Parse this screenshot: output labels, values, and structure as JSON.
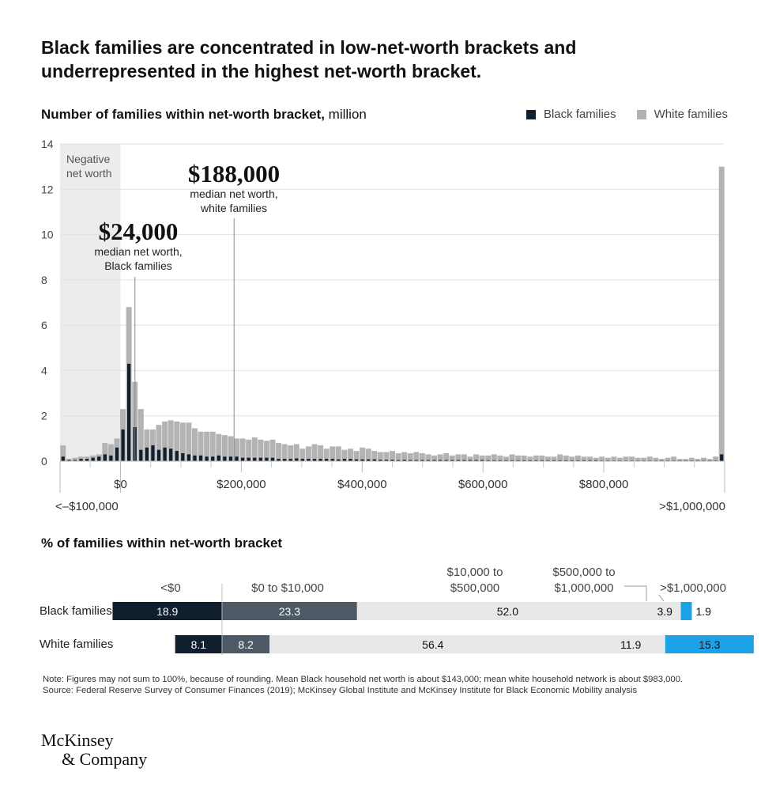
{
  "title": "Black families are concentrated in low-net-worth brackets and underrepresented in the highest net-worth bracket.",
  "histogram": {
    "heading_bold": "Number of families within net-worth bracket,",
    "heading_unit": "million",
    "legend": [
      {
        "label": "Black families",
        "color": "#0f1f2e"
      },
      {
        "label": "White families",
        "color": "#b3b3b3"
      }
    ],
    "negative_label": [
      "Negative",
      "net worth"
    ],
    "annotations": [
      {
        "value": "$24,000",
        "text": [
          "median net worth,",
          "Black families"
        ],
        "x_value": 24000
      },
      {
        "value": "$188,000",
        "text": [
          "median net worth,",
          "white families"
        ],
        "x_value": 188000
      }
    ]
  },
  "chart_data": [
    {
      "type": "bar",
      "title": "Number of families within net-worth bracket, million",
      "ylim": [
        0,
        14
      ],
      "y_ticks": [
        "0",
        "2",
        "4",
        "6",
        "8",
        "10",
        "12",
        "14"
      ],
      "x_tick_labels": [
        {
          "label": "<–$100,000",
          "x": -100000
        },
        {
          "label": "$0",
          "x": 0
        },
        {
          "label": "$200,000",
          "x": 200000
        },
        {
          "label": "$400,000",
          "x": 400000
        },
        {
          "label": "$600,000",
          "x": 600000
        },
        {
          "label": "$800,000",
          "x": 800000
        },
        {
          "label": ">$1,000,000",
          "x": 1000000
        }
      ],
      "bin_width": 10000,
      "series": [
        {
          "name": "White families",
          "values": [
            0.7,
            0.1,
            0.15,
            0.2,
            0.2,
            0.25,
            0.3,
            0.8,
            0.75,
            1.0,
            2.3,
            6.8,
            3.5,
            2.3,
            1.4,
            1.4,
            1.6,
            1.75,
            1.8,
            1.75,
            1.7,
            1.7,
            1.45,
            1.3,
            1.3,
            1.3,
            1.2,
            1.15,
            1.1,
            1.0,
            1.0,
            0.95,
            1.05,
            0.95,
            0.9,
            0.95,
            0.8,
            0.75,
            0.7,
            0.75,
            0.55,
            0.65,
            0.75,
            0.7,
            0.55,
            0.65,
            0.65,
            0.5,
            0.55,
            0.45,
            0.6,
            0.55,
            0.45,
            0.4,
            0.4,
            0.45,
            0.35,
            0.4,
            0.35,
            0.4,
            0.35,
            0.3,
            0.25,
            0.3,
            0.35,
            0.25,
            0.3,
            0.3,
            0.2,
            0.3,
            0.25,
            0.25,
            0.3,
            0.25,
            0.2,
            0.3,
            0.25,
            0.25,
            0.2,
            0.25,
            0.25,
            0.2,
            0.2,
            0.3,
            0.25,
            0.2,
            0.25,
            0.2,
            0.2,
            0.15,
            0.2,
            0.15,
            0.2,
            0.15,
            0.2,
            0.2,
            0.15,
            0.15,
            0.2,
            0.15,
            0.1,
            0.15,
            0.2,
            0.1,
            0.1,
            0.15,
            0.1,
            0.15,
            0.1,
            0.2,
            13.0
          ],
          "color": "#b3b3b3"
        },
        {
          "name": "Black families",
          "values": [
            0.2,
            0.05,
            0.05,
            0.1,
            0.1,
            0.15,
            0.2,
            0.3,
            0.25,
            0.6,
            1.4,
            4.3,
            1.5,
            0.5,
            0.6,
            0.7,
            0.5,
            0.6,
            0.55,
            0.45,
            0.35,
            0.3,
            0.25,
            0.25,
            0.2,
            0.2,
            0.25,
            0.2,
            0.2,
            0.2,
            0.15,
            0.15,
            0.15,
            0.15,
            0.15,
            0.15,
            0.1,
            0.1,
            0.1,
            0.12,
            0.1,
            0.1,
            0.1,
            0.1,
            0.1,
            0.1,
            0.08,
            0.1,
            0.1,
            0.08,
            0.08,
            0.08,
            0.08,
            0.06,
            0.06,
            0.06,
            0.05,
            0.06,
            0.05,
            0.05,
            0.05,
            0.05,
            0.05,
            0.05,
            0.05,
            0.05,
            0.05,
            0.05,
            0.05,
            0.05,
            0.05,
            0.04,
            0.04,
            0.04,
            0.04,
            0.04,
            0.04,
            0.04,
            0.04,
            0.04,
            0.04,
            0.04,
            0.04,
            0.04,
            0.04,
            0.04,
            0.04,
            0.04,
            0.04,
            0.04,
            0.03,
            0.03,
            0.03,
            0.03,
            0.03,
            0.03,
            0.03,
            0.03,
            0.03,
            0.03,
            0.03,
            0.03,
            0.03,
            0.03,
            0.03,
            0.03,
            0.03,
            0.03,
            0.03,
            0.03,
            0.3
          ],
          "color": "#0f1f2e"
        }
      ]
    },
    {
      "type": "bar",
      "orientation": "horizontal-stacked",
      "title": "% of families within net-worth bracket",
      "categories": [
        "<$0",
        "$0 to $10,000",
        "$10,000 to $500,000",
        "$500,000 to $1,000,000",
        ">$1,000,000"
      ],
      "category_colors": [
        "#0f1f2e",
        "#4d5a66",
        "#e8e8e8",
        "#e8e8e8",
        "#1ea2e6"
      ],
      "series": [
        {
          "name": "Black families",
          "values": [
            18.9,
            23.3,
            52.0,
            3.9,
            1.9
          ],
          "labels": [
            "18.9",
            "23.3",
            "52.0",
            "3.9",
            "1.9"
          ]
        },
        {
          "name": "White families",
          "values": [
            8.1,
            8.2,
            56.4,
            11.9,
            15.3
          ],
          "labels": [
            "8.1",
            "8.2",
            "56.4",
            "11.9",
            "15.3"
          ]
        }
      ]
    }
  ],
  "stack_header": [
    {
      "label_lines": [
        "<$0"
      ]
    },
    {
      "label_lines": [
        "$0 to $10,000"
      ]
    },
    {
      "label_lines": [
        "$10,000 to",
        "$500,000"
      ]
    },
    {
      "label_lines": [
        "$500,000 to",
        "$1,000,000"
      ]
    },
    {
      "label_lines": [
        ">$1,000,000"
      ]
    }
  ],
  "note": "Note: Figures may not sum to 100%, because of rounding. Mean Black household net worth is about $143,000; mean white household network is about $983,000.",
  "source": "Source: Federal Reserve Survey of Consumer Finances (2019); McKinsey Global Institute and McKinsey Institute for Black Economic Mobility analysis",
  "logo": [
    "McKinsey",
    "& Company"
  ]
}
